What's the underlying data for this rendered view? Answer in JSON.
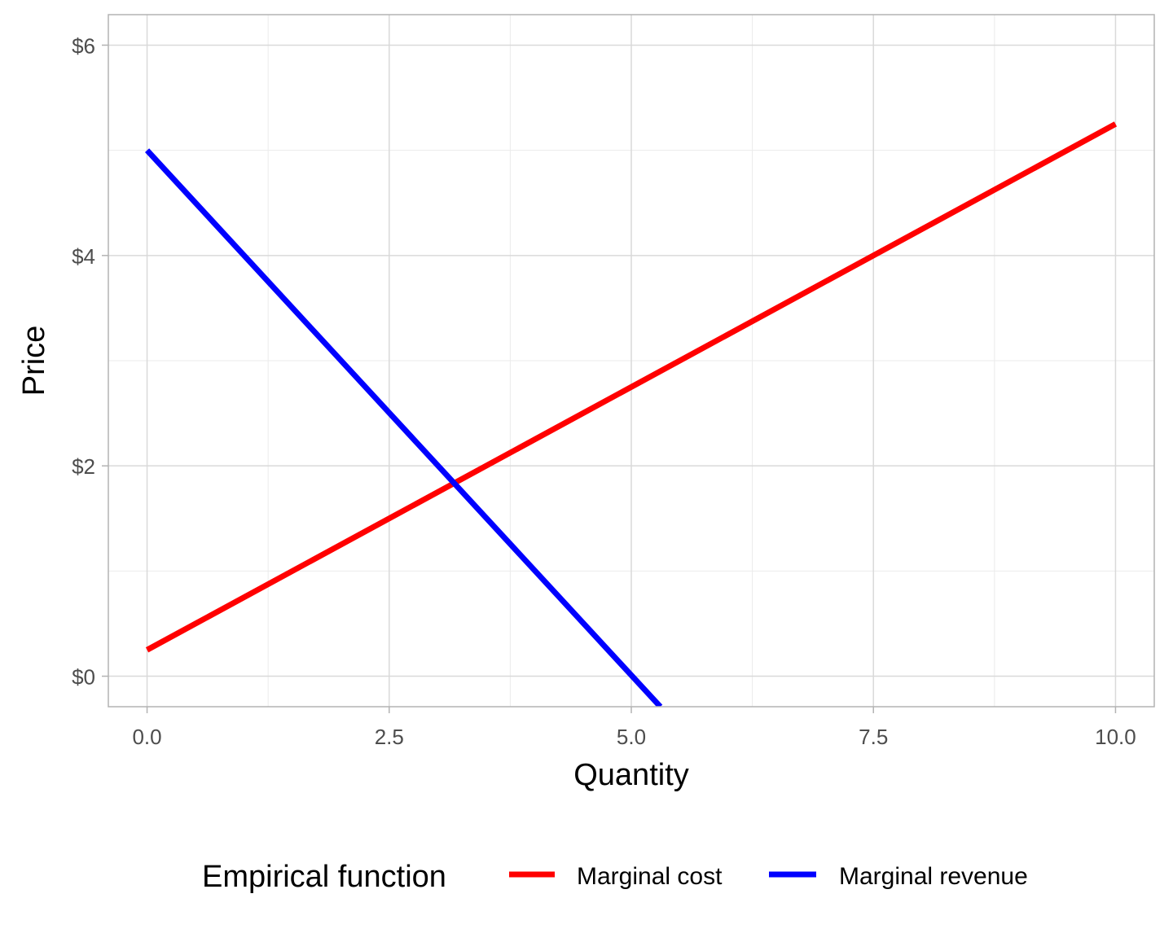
{
  "chart_data": {
    "type": "line",
    "title": "",
    "xlabel": "Quantity",
    "ylabel": "Price",
    "xlim": [
      -0.4,
      10.4
    ],
    "ylim": [
      -0.29,
      6.29
    ],
    "x_ticks": [
      0,
      2.5,
      5,
      7.5,
      10
    ],
    "x_tick_labels": [
      "0.0",
      "2.5",
      "5.0",
      "7.5",
      "10.0"
    ],
    "x_minor_ticks": [
      1.25,
      3.75,
      6.25,
      8.75
    ],
    "y_ticks": [
      0,
      2,
      4,
      6
    ],
    "y_tick_labels": [
      "$0",
      "$2",
      "$4",
      "$6"
    ],
    "y_minor_ticks": [
      1,
      3,
      5
    ],
    "grid": true,
    "legend": {
      "title": "Empirical function",
      "position": "bottom"
    },
    "series": [
      {
        "name": "Marginal cost",
        "color": "#ff0000",
        "x": [
          0,
          10
        ],
        "y": [
          0.25,
          5.25
        ]
      },
      {
        "name": "Marginal revenue",
        "color": "#0000ff",
        "x": [
          0,
          5.3
        ],
        "y": [
          5.0,
          -0.29
        ]
      }
    ]
  }
}
